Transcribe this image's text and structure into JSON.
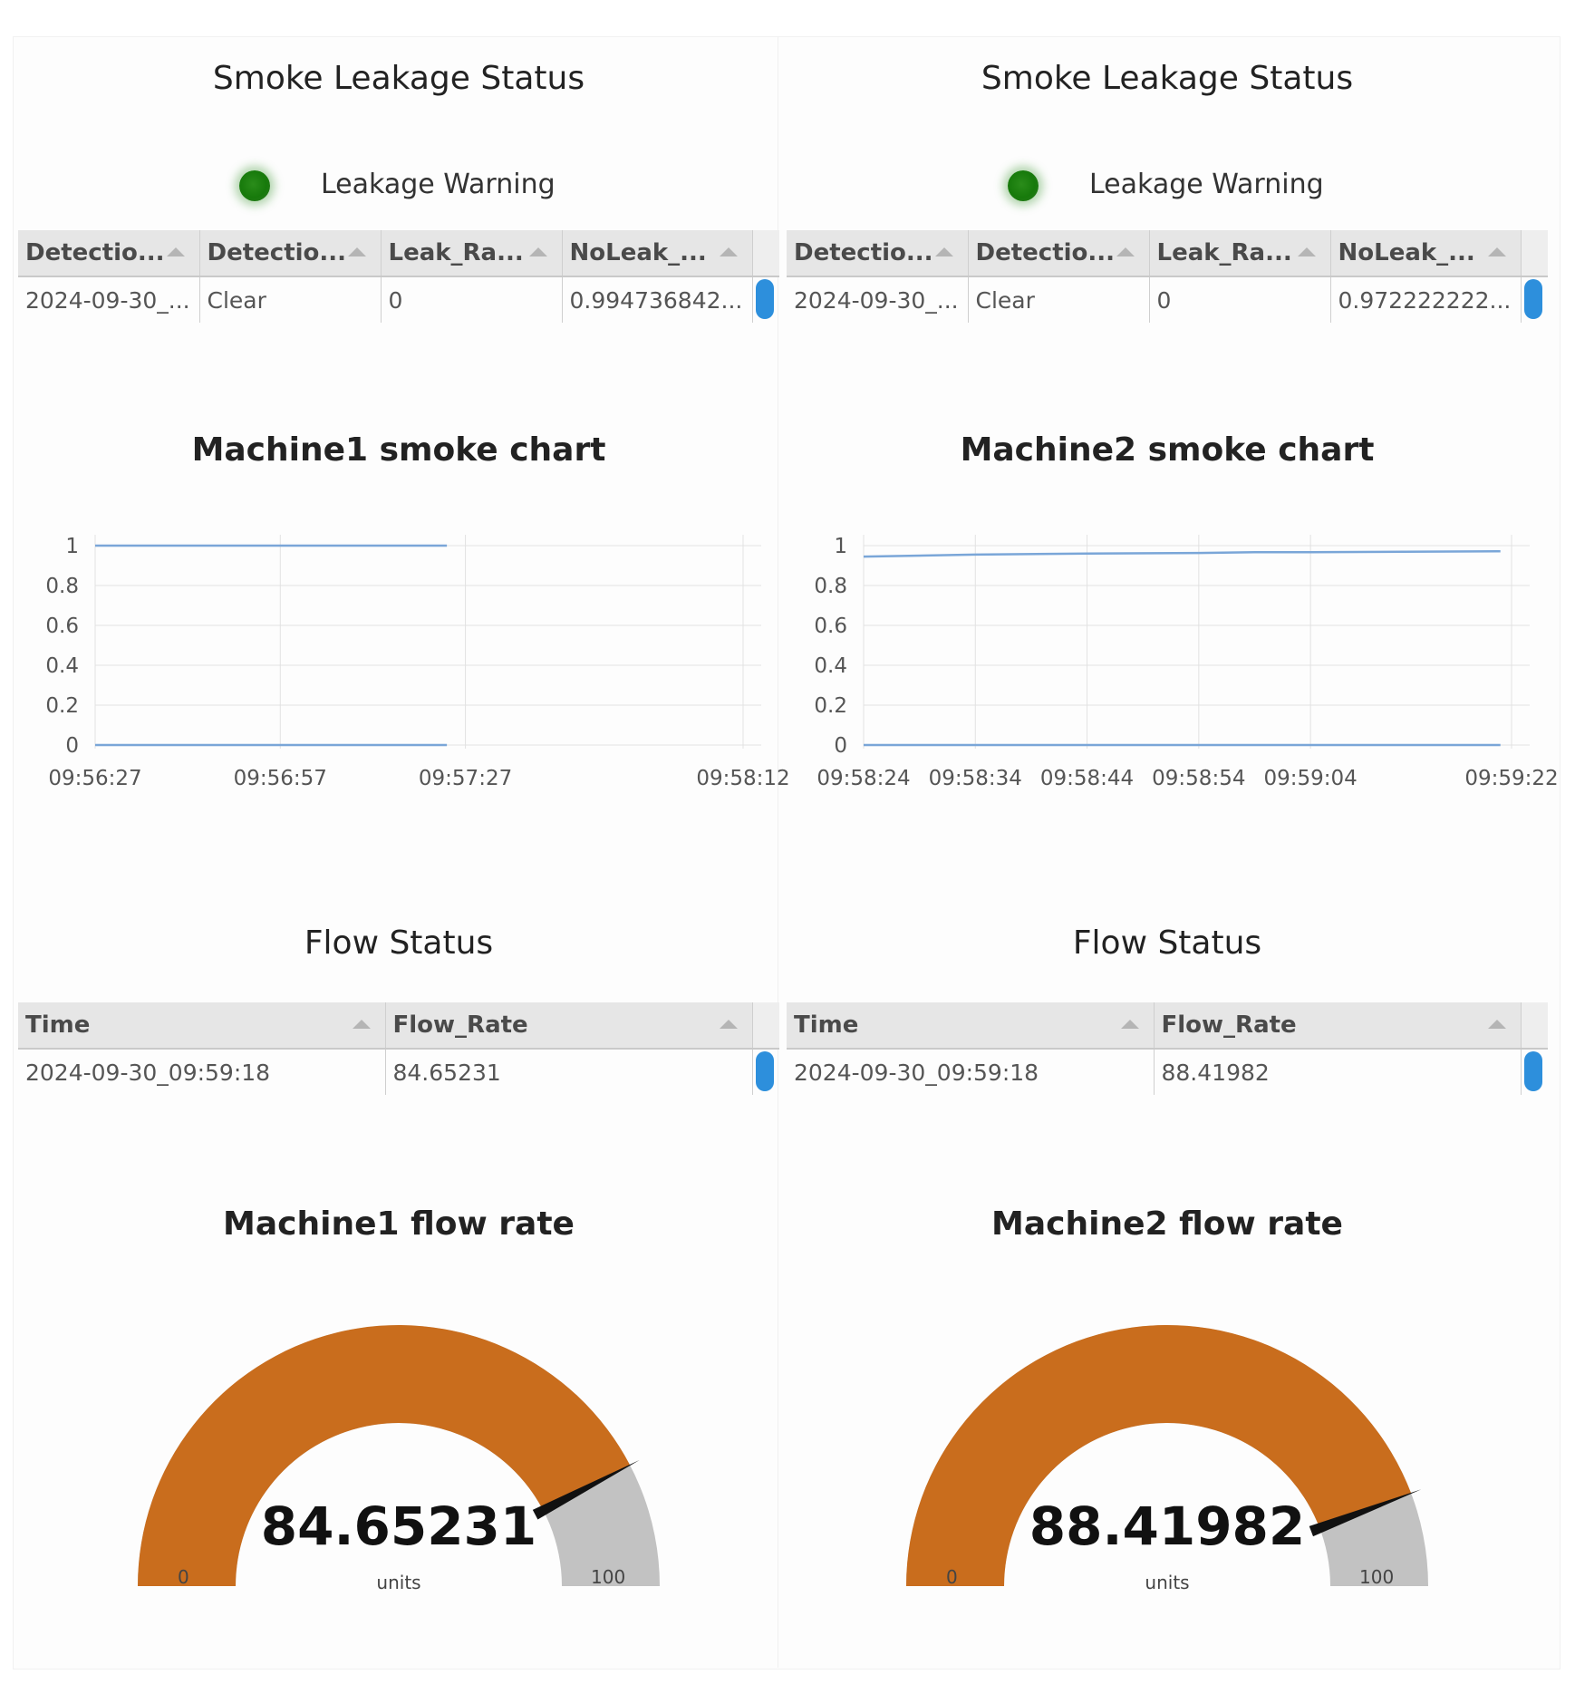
{
  "machines": [
    {
      "smoke_status": {
        "title": "Smoke Leakage Status",
        "indicator_label": "Leakage Warning",
        "indicator_color": "#177a0b",
        "columns": [
          "Detectio...",
          "Detectio...",
          "Leak_Ra...",
          "NoLeak_..."
        ],
        "row": [
          "2024-09-30_...",
          "Clear",
          "0",
          "0.994736842..."
        ]
      },
      "flow_status": {
        "title": "Flow Status",
        "columns": [
          "Time",
          "Flow_Rate"
        ],
        "row": [
          "2024-09-30_09:59:18",
          "84.65231"
        ]
      },
      "gauge": {
        "title": "Machine1 flow rate",
        "value": "84.65231",
        "units": "units",
        "min_label": "0",
        "max_label": "100",
        "min": 0,
        "max": 100,
        "fill_color": "#c96d1d",
        "track_color": "#c2c2c2"
      }
    },
    {
      "smoke_status": {
        "title": "Smoke Leakage Status",
        "indicator_label": "Leakage Warning",
        "indicator_color": "#177a0b",
        "columns": [
          "Detectio...",
          "Detectio...",
          "Leak_Ra...",
          "NoLeak_..."
        ],
        "row": [
          "2024-09-30_...",
          "Clear",
          "0",
          "0.972222222..."
        ]
      },
      "flow_status": {
        "title": "Flow Status",
        "columns": [
          "Time",
          "Flow_Rate"
        ],
        "row": [
          "2024-09-30_09:59:18",
          "88.41982"
        ]
      },
      "gauge": {
        "title": "Machine2 flow rate",
        "value": "88.41982",
        "units": "units",
        "min_label": "0",
        "max_label": "100",
        "min": 0,
        "max": 100,
        "fill_color": "#c96d1d",
        "track_color": "#c2c2c2"
      }
    }
  ],
  "chart_data": [
    {
      "type": "line",
      "title": "Machine1 smoke chart",
      "xlabel": "",
      "ylabel": "",
      "x": [
        "09:56:27",
        "09:56:57",
        "09:57:27",
        "09:58:12"
      ],
      "x_seconds": [
        0,
        30,
        60,
        105
      ],
      "yticks": [
        "0",
        "0.2",
        "0.4",
        "0.6",
        "0.8",
        "1"
      ],
      "ylim": [
        0,
        1
      ],
      "grid": true,
      "line_color": "#7aa6d8",
      "series": [
        {
          "points": [
            [
              0,
              1
            ],
            [
              57,
              1
            ]
          ]
        },
        {
          "points": [
            [
              0,
              0
            ],
            [
              57,
              0
            ]
          ]
        }
      ]
    },
    {
      "type": "line",
      "title": "Machine2 smoke chart",
      "xlabel": "",
      "ylabel": "",
      "x": [
        "09:58:24",
        "09:58:34",
        "09:58:44",
        "09:58:54",
        "09:59:04",
        "09:59:22"
      ],
      "x_seconds": [
        0,
        10,
        20,
        30,
        40,
        58
      ],
      "yticks": [
        "0",
        "0.2",
        "0.4",
        "0.6",
        "0.8",
        "1"
      ],
      "ylim": [
        0,
        1
      ],
      "grid": true,
      "line_color": "#7aa6d8",
      "series": [
        {
          "points": [
            [
              0,
              0.945
            ],
            [
              10,
              0.955
            ],
            [
              20,
              0.96
            ],
            [
              30,
              0.963
            ],
            [
              35,
              0.967
            ],
            [
              40,
              0.967
            ],
            [
              57,
              0.972
            ]
          ]
        },
        {
          "points": [
            [
              0,
              0
            ],
            [
              57,
              0
            ]
          ]
        }
      ]
    }
  ]
}
